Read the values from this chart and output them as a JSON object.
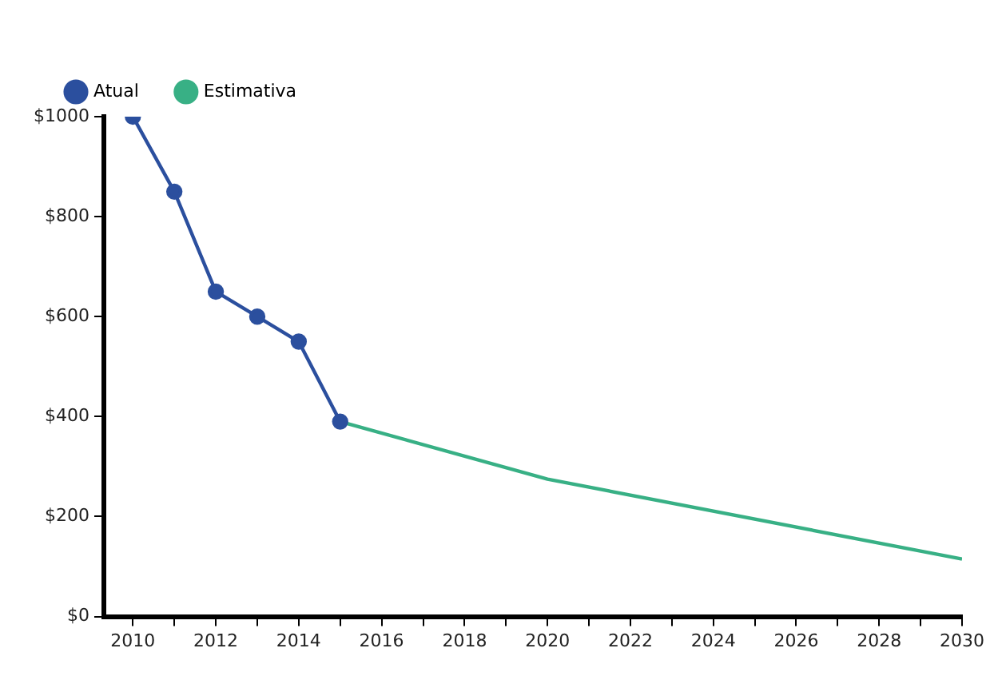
{
  "chart_data": {
    "type": "line",
    "legend": "top left",
    "grid": false,
    "xlim": [
      2009.3,
      2030
    ],
    "xticks": [
      2010,
      {
        "value": 2011,
        "label": null
      },
      2012,
      {
        "value": 2013,
        "label": null
      },
      2014,
      {
        "value": 2015,
        "label": null
      },
      2016,
      {
        "value": 2017,
        "label": null
      },
      2018,
      {
        "value": 2019,
        "label": null
      },
      2020,
      {
        "value": 2021,
        "label": null
      },
      2022,
      {
        "value": 2023,
        "label": null
      },
      2024,
      {
        "value": 2025,
        "label": null
      },
      2026,
      {
        "value": 2027,
        "label": null
      },
      2028,
      {
        "value": 2029,
        "label": null
      },
      2030
    ],
    "ylim": [
      0,
      1000
    ],
    "yticks": [
      {
        "value": 0,
        "label": "$0"
      },
      {
        "value": 200,
        "label": "$200"
      },
      {
        "value": 400,
        "label": "$400"
      },
      {
        "value": 600,
        "label": "$600"
      },
      {
        "value": 800,
        "label": "$800"
      },
      {
        "value": 1000,
        "label": "$1000"
      }
    ],
    "series": [
      {
        "name": "Atual",
        "color": "#2b4f9e",
        "marker": "circle",
        "x": [
          2010,
          2011,
          2012,
          2013,
          2014,
          2015
        ],
        "values": [
          1000,
          850,
          650,
          600,
          550,
          390
        ]
      },
      {
        "name": "Estimativa",
        "color": "#38b085",
        "marker": "none",
        "x": [
          2015,
          2020,
          2030
        ],
        "values": [
          390,
          275,
          115
        ]
      }
    ]
  }
}
